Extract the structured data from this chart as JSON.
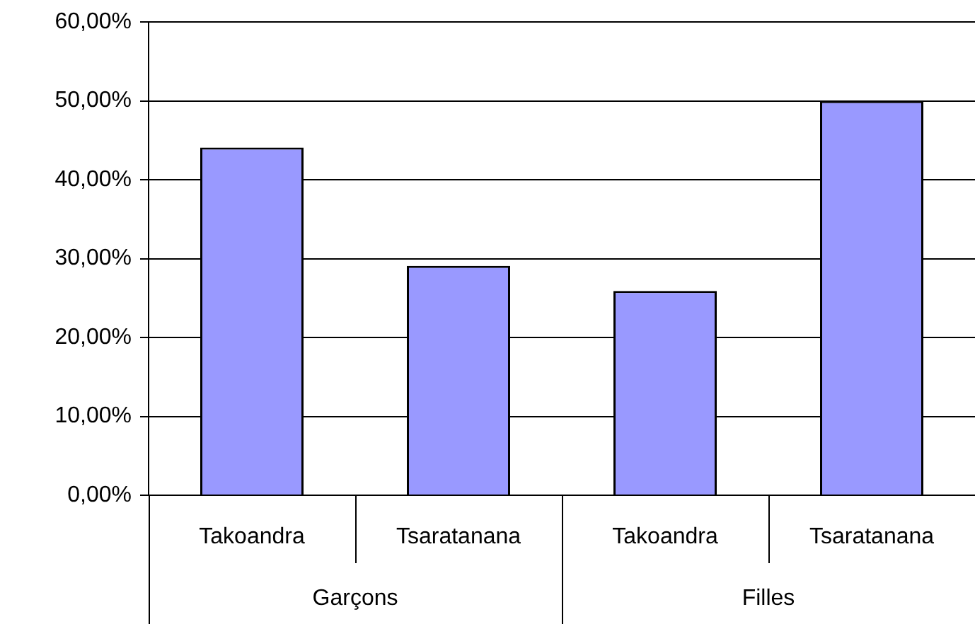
{
  "chart_data": {
    "type": "bar",
    "categories": [
      "Takoandra",
      "Tsaratanana",
      "Takoandra",
      "Tsaratanana"
    ],
    "values": [
      44.1,
      29.1,
      25.9,
      50.0
    ],
    "color": "#9999ff",
    "ylim": [
      0,
      60
    ],
    "yticks": [
      {
        "value": 0,
        "label": "0,00%"
      },
      {
        "value": 10,
        "label": "10,00%"
      },
      {
        "value": 20,
        "label": "20,00%"
      },
      {
        "value": 30,
        "label": "30,00%"
      },
      {
        "value": 40,
        "label": "40,00%"
      },
      {
        "value": 50,
        "label": "50,00%"
      },
      {
        "value": 60,
        "label": "60,00%"
      }
    ],
    "grid": "y",
    "legend": false,
    "annotations": [
      "Garçons",
      "Filles"
    ]
  }
}
